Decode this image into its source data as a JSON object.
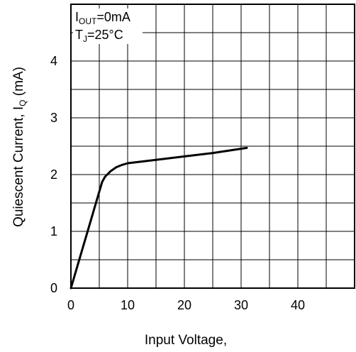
{
  "chart_data": {
    "type": "line",
    "x_values": [
      0,
      1,
      2,
      3,
      4,
      5,
      5.5,
      6,
      7,
      8,
      9,
      10,
      15,
      20,
      25,
      31
    ],
    "y_values": [
      0,
      0.34,
      0.68,
      1.02,
      1.36,
      1.7,
      1.87,
      1.96,
      2.06,
      2.13,
      2.17,
      2.2,
      2.26,
      2.32,
      2.38,
      2.47
    ],
    "xlim": [
      0,
      50
    ],
    "ylim": [
      0,
      5
    ],
    "x_ticks": [
      "0",
      "10",
      "20",
      "30",
      "40"
    ],
    "y_ticks": [
      "0",
      "1",
      "2",
      "3",
      "4"
    ],
    "xlabel": "Input Voltage,",
    "ylabel_main": "Quiescent Current, I",
    "ylabel_sub": "Q",
    "ylabel_unit": " (mA)",
    "grid": true,
    "line_color": "#000000",
    "annotation": {
      "line1_main": "I",
      "line1_sub": "OUT",
      "line1_rest": "=0mA",
      "line2_main": "T",
      "line2_sub": "J",
      "line2_rest": "=25°C"
    }
  }
}
